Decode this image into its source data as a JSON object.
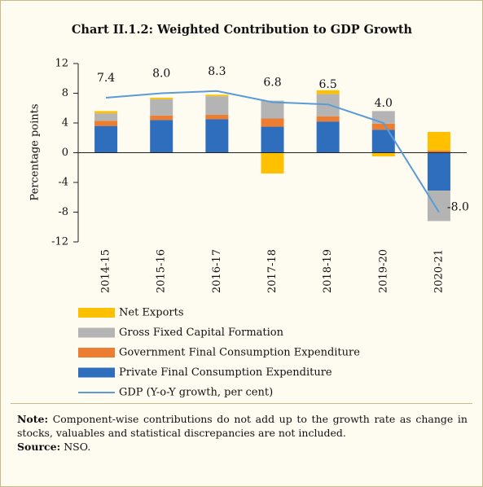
{
  "chart_data": {
    "type": "bar",
    "stacked": true,
    "title": "Chart II.1.2: Weighted Contribution to GDP Growth",
    "ylabel": "Percentage points",
    "categories": [
      "2014-15",
      "2015-16",
      "2016-17",
      "2017-18",
      "2018-19",
      "2019-20",
      "2020-21"
    ],
    "series": [
      {
        "name": "Net Exports",
        "color": "#ffc000",
        "values": [
          0.3,
          0.2,
          0.2,
          -2.8,
          0.5,
          -0.5,
          2.5
        ]
      },
      {
        "name": "Gross Fixed Capital Formation",
        "color": "#b4b4b4",
        "values": [
          1.0,
          2.2,
          2.5,
          2.4,
          3.0,
          1.7,
          -4.1
        ]
      },
      {
        "name": "Government Final Consumption Expenditure",
        "color": "#ed7d31",
        "values": [
          0.7,
          0.6,
          0.6,
          1.1,
          0.7,
          0.8,
          0.3
        ]
      },
      {
        "name": "Private Final Consumption Expenditure",
        "color": "#2f6ebd",
        "values": [
          3.6,
          4.4,
          4.5,
          3.5,
          4.2,
          3.1,
          -5.1
        ]
      },
      {
        "name": "GDP (Y-o-Y growth, per cent)",
        "color": "#5b9bd5",
        "type": "line",
        "values": [
          7.4,
          8.0,
          8.3,
          6.8,
          6.5,
          4.0,
          -8.0
        ],
        "value_labels": [
          "7.4",
          "8.0",
          "8.3",
          "6.8",
          "6.5",
          "4.0",
          "-8.0"
        ]
      }
    ],
    "ylim": [
      -12,
      12
    ],
    "yticks": [
      -12,
      -8,
      -4,
      0,
      4,
      8,
      12
    ]
  },
  "note": {
    "label": "Note:",
    "text": "Component-wise contributions do not add up to the growth rate as change in stocks, valuables and statistical discrepancies are not included."
  },
  "source": {
    "label": "Source:",
    "text": "NSO."
  }
}
